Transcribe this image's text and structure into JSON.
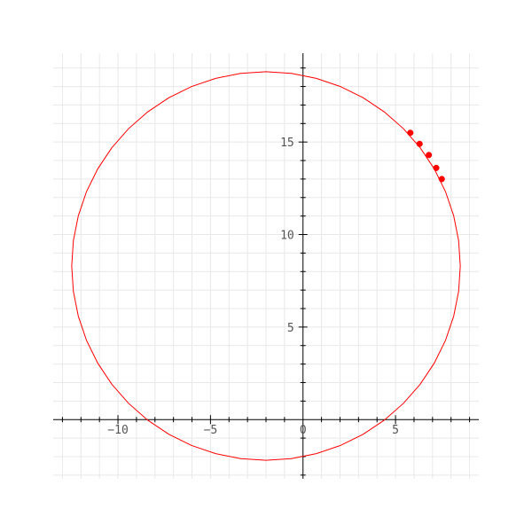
{
  "chart_data": {
    "type": "scatter",
    "title": "",
    "xlabel": "",
    "ylabel": "",
    "xlim": [
      -13.5,
      9.5
    ],
    "ylim": [
      -3.2,
      19.8
    ],
    "grid": true,
    "minor_step": 1,
    "x_ticks": [
      {
        "value": -10,
        "label": "−10"
      },
      {
        "value": -5,
        "label": "−5"
      },
      {
        "value": 0,
        "label": "0"
      },
      {
        "value": 5,
        "label": "5"
      }
    ],
    "y_ticks": [
      {
        "value": 5,
        "label": "5"
      },
      {
        "value": 10,
        "label": "10"
      },
      {
        "value": 15,
        "label": "15"
      }
    ],
    "circle": {
      "center": [
        -2.0,
        8.3
      ],
      "radius": 10.5,
      "color": "#ff0000"
    },
    "series": [
      {
        "color": "#ff0000",
        "points": [
          {
            "x": 5.8,
            "y": 15.5
          },
          {
            "x": 6.3,
            "y": 14.9
          },
          {
            "x": 6.8,
            "y": 14.3
          },
          {
            "x": 7.2,
            "y": 13.6
          },
          {
            "x": 7.5,
            "y": 13.0
          }
        ]
      }
    ],
    "colors": {
      "grid": "#e8e8e8",
      "axis": "#000000",
      "tick_text": "#555555",
      "background": "#ffffff"
    }
  }
}
